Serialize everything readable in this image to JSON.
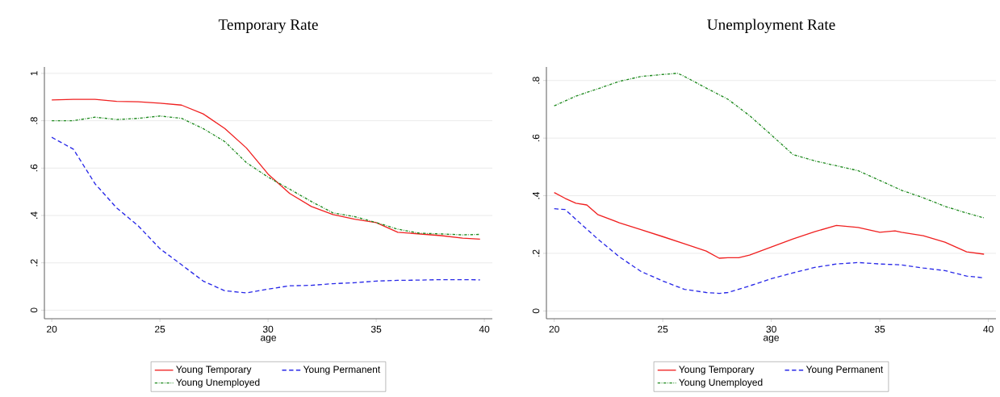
{
  "chart_data": [
    {
      "type": "line",
      "title": "Temporary Rate",
      "xlabel": "age",
      "xlim": [
        19.66,
        40.37
      ],
      "ylim": [
        -0.036,
        1.027
      ],
      "xticks": [
        20,
        25,
        30,
        35,
        40
      ],
      "yticks": [
        0,
        {
          "value": 0.2,
          "label": ".2"
        },
        {
          "value": 0.4,
          "label": ".4"
        },
        {
          "value": 0.6,
          "label": ".6"
        },
        {
          "value": 0.8,
          "label": ".8"
        },
        1
      ],
      "grid": "y",
      "legend": "bottom",
      "x": [
        20,
        21,
        22,
        23,
        24,
        25,
        26,
        27,
        28,
        29,
        30,
        31,
        32,
        33,
        34,
        35,
        36,
        37,
        38,
        39,
        39.8
      ],
      "series": [
        {
          "name": "Young Temporary",
          "color": "#f02020",
          "line_style": "solid",
          "values": [
            0.888,
            0.89,
            0.89,
            0.882,
            0.88,
            0.874,
            0.866,
            0.829,
            0.767,
            0.685,
            0.575,
            0.493,
            0.438,
            0.404,
            0.384,
            0.37,
            0.329,
            0.322,
            0.315,
            0.304,
            0.3
          ]
        },
        {
          "name": "Young Permanent",
          "color": "#2828e8",
          "line_style": "dashed",
          "values": [
            0.73,
            0.68,
            0.534,
            0.432,
            0.356,
            0.26,
            0.192,
            0.123,
            0.082,
            0.073,
            0.089,
            0.103,
            0.105,
            0.112,
            0.116,
            0.123,
            0.126,
            0.127,
            0.129,
            0.129,
            0.128
          ]
        },
        {
          "name": "Young Unemployed",
          "color": "#1f8a1f",
          "line_style": "dotted",
          "values": [
            0.8,
            0.8,
            0.815,
            0.805,
            0.81,
            0.82,
            0.81,
            0.767,
            0.712,
            0.623,
            0.562,
            0.511,
            0.459,
            0.411,
            0.395,
            0.37,
            0.342,
            0.325,
            0.322,
            0.318,
            0.32
          ]
        }
      ]
    },
    {
      "type": "line",
      "title": "Unemployment Rate",
      "xlabel": "age",
      "xlim": [
        19.64,
        40.35
      ],
      "ylim": [
        -0.027,
        0.847
      ],
      "xticks": [
        20,
        25,
        30,
        35,
        40
      ],
      "yticks": [
        0,
        {
          "value": 0.2,
          "label": ".2"
        },
        {
          "value": 0.4,
          "label": ".4"
        },
        {
          "value": 0.6,
          "label": ".6"
        },
        {
          "value": 0.8,
          "label": ".8"
        }
      ],
      "grid": "y",
      "legend": "bottom",
      "series": [
        {
          "name": "Young Temporary",
          "color": "#f02020",
          "line_style": "solid",
          "x": [
            20,
            20.5,
            21,
            21.5,
            22,
            23,
            24,
            25,
            26,
            27,
            27.6,
            28,
            28.5,
            29,
            30,
            31,
            32,
            33,
            34,
            35,
            35.7,
            36,
            37,
            38,
            39,
            39.8
          ],
          "values": [
            0.411,
            0.391,
            0.374,
            0.368,
            0.335,
            0.306,
            0.282,
            0.258,
            0.233,
            0.208,
            0.183,
            0.185,
            0.185,
            0.194,
            0.222,
            0.25,
            0.275,
            0.297,
            0.29,
            0.273,
            0.278,
            0.273,
            0.261,
            0.239,
            0.205,
            0.197
          ]
        },
        {
          "name": "Young Permanent",
          "color": "#2828e8",
          "line_style": "dashed",
          "x": [
            20,
            20.5,
            21,
            22,
            23,
            24,
            25,
            26,
            27,
            27.6,
            28,
            29,
            30,
            31,
            32,
            33,
            34,
            35,
            36,
            37,
            38,
            39,
            39.8
          ],
          "values": [
            0.355,
            0.352,
            0.318,
            0.25,
            0.188,
            0.137,
            0.104,
            0.075,
            0.064,
            0.061,
            0.064,
            0.087,
            0.112,
            0.132,
            0.151,
            0.163,
            0.168,
            0.163,
            0.16,
            0.149,
            0.14,
            0.121,
            0.115
          ]
        },
        {
          "name": "Young Unemployed",
          "color": "#1f8a1f",
          "line_style": "dotted",
          "x": [
            20,
            21,
            22,
            23,
            24,
            25,
            25.7,
            26,
            27,
            28,
            29,
            30,
            31,
            32,
            33,
            34,
            35,
            36,
            37,
            38,
            39,
            39.8
          ],
          "values": [
            0.712,
            0.746,
            0.771,
            0.797,
            0.814,
            0.821,
            0.825,
            0.814,
            0.774,
            0.735,
            0.678,
            0.611,
            0.543,
            0.521,
            0.504,
            0.487,
            0.453,
            0.419,
            0.393,
            0.363,
            0.34,
            0.323
          ]
        }
      ]
    }
  ]
}
